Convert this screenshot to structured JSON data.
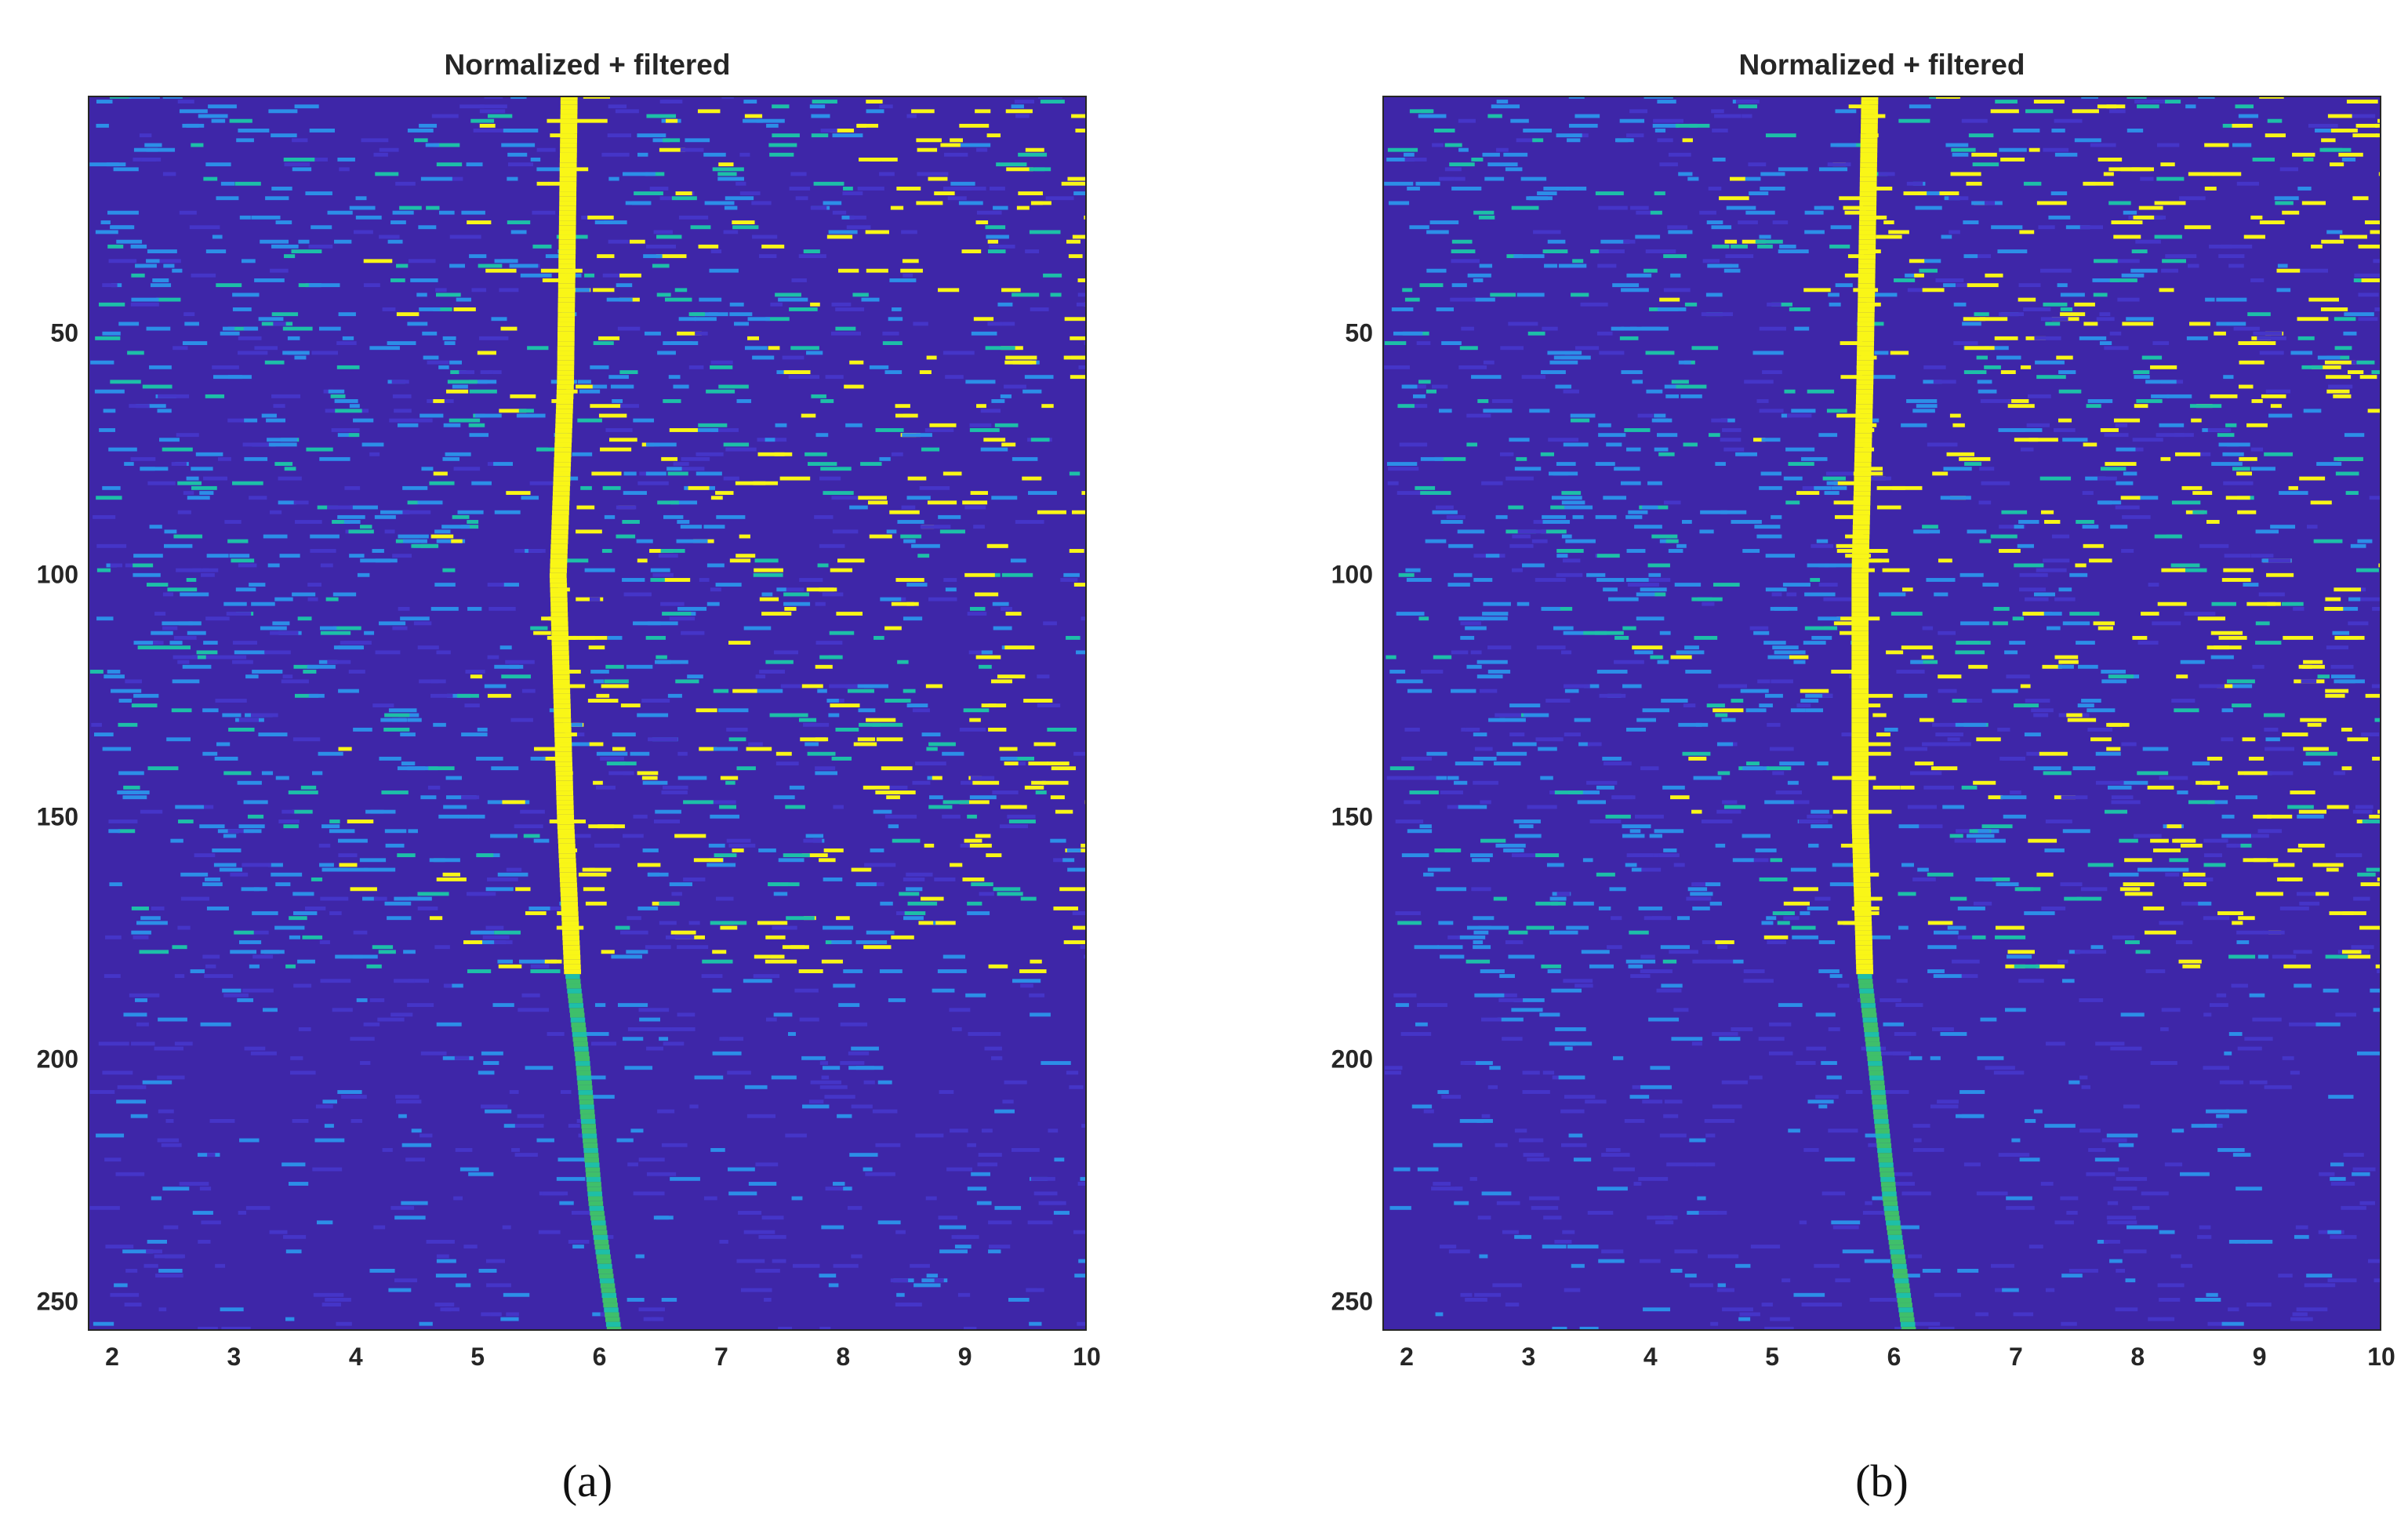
{
  "colors": {
    "background": "#3e26a8",
    "low": "#4535c8",
    "mid": "#2c8ee8",
    "teal": "#1dbfa8",
    "high": "#f9f617"
  },
  "chart_data": [
    {
      "type": "heatmap",
      "panel_label": "(a)",
      "title": "Normalized + filtered",
      "xlabel": "",
      "ylabel": "",
      "xlim": [
        1.8,
        10
      ],
      "ylim": [
        256,
        1
      ],
      "xticks": [
        "2",
        "3",
        "4",
        "5",
        "6",
        "7",
        "8",
        "9",
        "10"
      ],
      "yticks": [
        "50",
        "100",
        "150",
        "200",
        "250"
      ],
      "colormap": "parula",
      "grid": false,
      "feature": {
        "boundary_row": 183,
        "trace": [
          [
            5.75,
            1
          ],
          [
            5.72,
            60
          ],
          [
            5.66,
            100
          ],
          [
            5.72,
            150
          ],
          [
            5.78,
            183
          ],
          [
            5.86,
            200
          ],
          [
            5.97,
            230
          ],
          [
            6.12,
            256
          ]
        ]
      }
    },
    {
      "type": "heatmap",
      "panel_label": "(b)",
      "title": "Normalized + filtered",
      "xlabel": "",
      "ylabel": "",
      "xlim": [
        1.8,
        10
      ],
      "ylim": [
        256,
        1
      ],
      "xticks": [
        "2",
        "3",
        "4",
        "5",
        "6",
        "7",
        "8",
        "9",
        "10"
      ],
      "yticks": [
        "50",
        "100",
        "150",
        "200",
        "250"
      ],
      "colormap": "parula",
      "grid": false,
      "feature": {
        "boundary_row": 183,
        "trace": [
          [
            5.8,
            1
          ],
          [
            5.76,
            60
          ],
          [
            5.72,
            100
          ],
          [
            5.72,
            150
          ],
          [
            5.76,
            183
          ],
          [
            5.84,
            200
          ],
          [
            5.97,
            230
          ],
          [
            6.12,
            256
          ]
        ]
      }
    }
  ]
}
